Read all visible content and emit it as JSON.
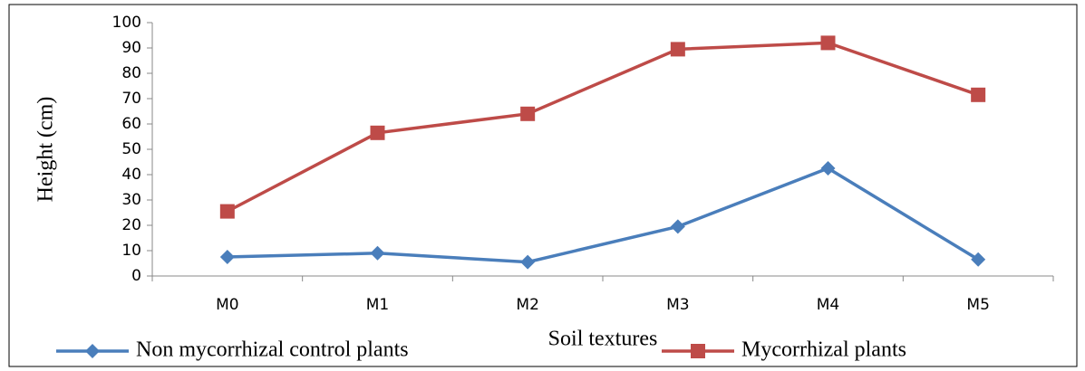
{
  "chart_data": {
    "type": "line",
    "x_label": "Soil textures",
    "y_label": "Height (cm)",
    "categories": [
      "M0",
      "M1",
      "M2",
      "M3",
      "M4",
      "M5"
    ],
    "series": [
      {
        "name": "Non mycorrhizal control plants",
        "color": "#4a7ebb",
        "marker": "diamond",
        "values": [
          7.5,
          9,
          5.5,
          19.5,
          42.5,
          6.5
        ]
      },
      {
        "name": "Mycorrhizal plants",
        "color": "#be4b48",
        "marker": "square",
        "values": [
          25.5,
          56.5,
          64,
          89.5,
          92,
          71.5
        ]
      }
    ],
    "ylim": [
      0,
      100
    ],
    "yticks": [
      0,
      10,
      20,
      30,
      40,
      50,
      60,
      70,
      80,
      90,
      100
    ],
    "grid": false,
    "legend": "bottom"
  }
}
